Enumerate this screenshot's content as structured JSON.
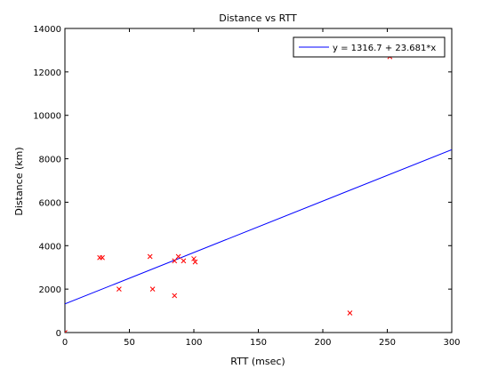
{
  "chart_data": {
    "type": "scatter",
    "title": "Distance vs RTT",
    "xlabel": "RTT (msec)",
    "ylabel": "Distance (km)",
    "xlim": [
      0,
      300
    ],
    "ylim": [
      0,
      14000
    ],
    "xticks": [
      0,
      50,
      100,
      150,
      200,
      250,
      300
    ],
    "yticks": [
      0,
      2000,
      4000,
      6000,
      8000,
      10000,
      12000,
      14000
    ],
    "grid": false,
    "legend_position": "top-right",
    "series": [
      {
        "kind": "scatter",
        "color": "#ff0000",
        "marker": "x",
        "x": [
          0,
          27,
          29,
          42,
          66,
          68,
          85,
          85,
          88,
          92,
          100,
          101,
          221,
          252
        ],
        "y": [
          0,
          3450,
          3450,
          2000,
          3500,
          2000,
          1700,
          3300,
          3500,
          3300,
          3400,
          3250,
          900,
          12700
        ]
      },
      {
        "kind": "line",
        "name": "y = 1316.7 + 23.681*x",
        "color": "#0000ff",
        "intercept": 1316.7,
        "slope": 23.681
      }
    ]
  }
}
